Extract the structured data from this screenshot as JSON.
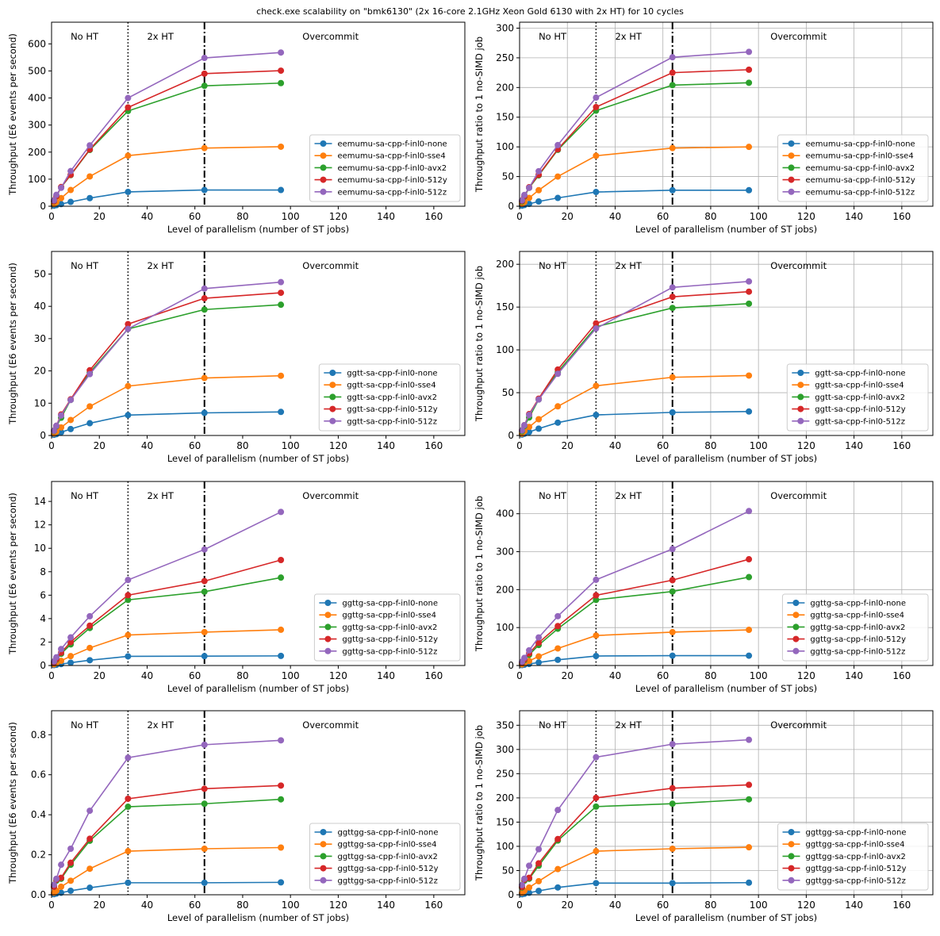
{
  "figure": {
    "title": "check.exe scalability on \"bmk6130\" (2x 16-core 2.1GHz Xeon Gold 6130 with 2x HT) for 10 cycles",
    "region_labels": [
      "No HT",
      "2x HT",
      "Overcommit"
    ],
    "region_label_x": [
      8,
      40,
      105
    ],
    "dotted_line_x": 32,
    "dashdot_line_x": 64,
    "colors": [
      "#1f77b4",
      "#ff7f0e",
      "#2ca02c",
      "#d62728",
      "#9467bd"
    ]
  },
  "chart_data": [
    {
      "type": "line",
      "process": "eemumu",
      "grid": false,
      "xlabel": "Level of parallelism (number of ST jobs)",
      "ylabel": "Throughput (E6 events per second)",
      "xlim": [
        0,
        173
      ],
      "ylim": [
        0,
        680
      ],
      "xticks": [
        0,
        20,
        40,
        60,
        80,
        100,
        120,
        140,
        160
      ],
      "yticks": [
        0,
        100,
        200,
        300,
        400,
        500,
        600
      ],
      "legend": "lower-right",
      "x": [
        1,
        2,
        4,
        8,
        16,
        32,
        64,
        96
      ],
      "series": [
        {
          "name": "eemumu-sa-cpp-f-inl0-none",
          "values": [
            2,
            4,
            8,
            16,
            30,
            53,
            60,
            60
          ]
        },
        {
          "name": "eemumu-sa-cpp-f-inl0-sse4",
          "values": [
            8,
            15,
            30,
            60,
            110,
            187,
            215,
            220
          ]
        },
        {
          "name": "eemumu-sa-cpp-f-inl0-avx2",
          "values": [
            18,
            36,
            70,
            115,
            208,
            352,
            445,
            455
          ]
        },
        {
          "name": "eemumu-sa-cpp-f-inl0-512y",
          "values": [
            19,
            37,
            71,
            116,
            210,
            365,
            490,
            501
          ]
        },
        {
          "name": "eemumu-sa-cpp-f-inl0-512z",
          "values": [
            22,
            42,
            68,
            130,
            225,
            400,
            548,
            568
          ]
        }
      ]
    },
    {
      "type": "line",
      "process": "eemumu",
      "grid": true,
      "xlabel": "Level of parallelism (number of ST jobs)",
      "ylabel": "Throughput ratio to 1 no-SIMD job",
      "xlim": [
        0,
        173
      ],
      "ylim": [
        0,
        310
      ],
      "xticks": [
        0,
        20,
        40,
        60,
        80,
        100,
        120,
        140,
        160
      ],
      "yticks": [
        0,
        50,
        100,
        150,
        200,
        250,
        300
      ],
      "legend": "lower-right",
      "x": [
        1,
        2,
        4,
        8,
        16,
        32,
        64,
        96
      ],
      "series": [
        {
          "name": "eemumu-sa-cpp-f-inl0-none",
          "values": [
            1,
            2,
            4,
            8,
            14,
            24,
            27,
            27
          ]
        },
        {
          "name": "eemumu-sa-cpp-f-inl0-sse4",
          "values": [
            4,
            7,
            14,
            27,
            50,
            85,
            98,
            100
          ]
        },
        {
          "name": "eemumu-sa-cpp-f-inl0-avx2",
          "values": [
            8,
            16,
            31,
            52,
            95,
            161,
            204,
            208
          ]
        },
        {
          "name": "eemumu-sa-cpp-f-inl0-512y",
          "values": [
            9,
            17,
            32,
            53,
            96,
            167,
            225,
            230
          ]
        },
        {
          "name": "eemumu-sa-cpp-f-inl0-512z",
          "values": [
            10,
            19,
            31,
            59,
            103,
            183,
            251,
            260
          ]
        }
      ]
    },
    {
      "type": "line",
      "process": "ggtt",
      "grid": false,
      "xlabel": "Level of parallelism (number of ST jobs)",
      "ylabel": "Throughput (E6 events per second)",
      "xlim": [
        0,
        173
      ],
      "ylim": [
        0,
        57
      ],
      "xticks": [
        0,
        20,
        40,
        60,
        80,
        100,
        120,
        140,
        160
      ],
      "yticks": [
        0,
        10,
        20,
        30,
        40,
        50
      ],
      "legend": "lower-right",
      "x": [
        1,
        2,
        4,
        8,
        16,
        32,
        64,
        96
      ],
      "series": [
        {
          "name": "ggtt-sa-cpp-f-inl0-none",
          "values": [
            0.2,
            0.4,
            1.0,
            2.0,
            3.8,
            6.3,
            7.0,
            7.3
          ]
        },
        {
          "name": "ggtt-sa-cpp-f-inl0-sse4",
          "values": [
            0.6,
            1.2,
            2.5,
            4.8,
            9.0,
            15.3,
            17.8,
            18.5
          ]
        },
        {
          "name": "ggtt-sa-cpp-f-inl0-avx2",
          "values": [
            1.4,
            2.8,
            5.5,
            11.0,
            19.5,
            33.0,
            39.0,
            40.5
          ]
        },
        {
          "name": "ggtt-sa-cpp-f-inl0-512y",
          "values": [
            1.5,
            3.0,
            6.5,
            11.2,
            20.2,
            34.5,
            42.5,
            44.2
          ]
        },
        {
          "name": "ggtt-sa-cpp-f-inl0-512z",
          "values": [
            1.5,
            3.0,
            6.2,
            11.0,
            19.0,
            33.0,
            45.5,
            47.5
          ]
        }
      ]
    },
    {
      "type": "line",
      "process": "ggtt",
      "grid": true,
      "xlabel": "Level of parallelism (number of ST jobs)",
      "ylabel": "Throughput ratio to 1 no-SIMD job",
      "xlim": [
        0,
        173
      ],
      "ylim": [
        0,
        215
      ],
      "xticks": [
        0,
        20,
        40,
        60,
        80,
        100,
        120,
        140,
        160
      ],
      "yticks": [
        0,
        50,
        100,
        150,
        200
      ],
      "legend": "lower-right",
      "x": [
        1,
        2,
        4,
        8,
        16,
        32,
        64,
        96
      ],
      "series": [
        {
          "name": "ggtt-sa-cpp-f-inl0-none",
          "values": [
            1,
            2,
            4,
            8,
            15,
            24,
            27,
            28
          ]
        },
        {
          "name": "ggtt-sa-cpp-f-inl0-sse4",
          "values": [
            2,
            5,
            10,
            19,
            34,
            58,
            68,
            70
          ]
        },
        {
          "name": "ggtt-sa-cpp-f-inl0-avx2",
          "values": [
            5,
            11,
            21,
            42,
            74,
            127,
            149,
            154
          ]
        },
        {
          "name": "ggtt-sa-cpp-f-inl0-512y",
          "values": [
            6,
            12,
            25,
            43,
            77,
            131,
            162,
            168
          ]
        },
        {
          "name": "ggtt-sa-cpp-f-inl0-512z",
          "values": [
            6,
            12,
            24,
            42,
            72,
            125,
            173,
            180
          ]
        }
      ]
    },
    {
      "type": "line",
      "process": "ggttg",
      "grid": false,
      "xlabel": "Level of parallelism (number of ST jobs)",
      "ylabel": "Throughput (E6 events per second)",
      "xlim": [
        0,
        173
      ],
      "ylim": [
        0,
        15.7
      ],
      "xticks": [
        0,
        20,
        40,
        60,
        80,
        100,
        120,
        140,
        160
      ],
      "yticks": [
        0,
        2,
        4,
        6,
        8,
        10,
        12,
        14
      ],
      "legend": "lower-right",
      "x": [
        1,
        2,
        4,
        8,
        16,
        32,
        64,
        96
      ],
      "series": [
        {
          "name": "ggttg-sa-cpp-f-inl0-none",
          "values": [
            0.03,
            0.06,
            0.12,
            0.24,
            0.45,
            0.78,
            0.8,
            0.82
          ]
        },
        {
          "name": "ggttg-sa-cpp-f-inl0-sse4",
          "values": [
            0.1,
            0.2,
            0.4,
            0.8,
            1.5,
            2.6,
            2.85,
            3.05
          ]
        },
        {
          "name": "ggttg-sa-cpp-f-inl0-avx2",
          "values": [
            0.25,
            0.5,
            1.0,
            1.8,
            3.2,
            5.6,
            6.3,
            7.5
          ]
        },
        {
          "name": "ggttg-sa-cpp-f-inl0-512y",
          "values": [
            0.28,
            0.55,
            1.1,
            2.0,
            3.4,
            6.0,
            7.2,
            9.0
          ]
        },
        {
          "name": "ggttg-sa-cpp-f-inl0-512z",
          "values": [
            0.35,
            0.7,
            1.4,
            2.4,
            4.2,
            7.3,
            9.9,
            13.1
          ]
        }
      ]
    },
    {
      "type": "line",
      "process": "ggttg",
      "grid": true,
      "xlabel": "Level of parallelism (number of ST jobs)",
      "ylabel": "Throughput ratio to 1 no-SIMD job",
      "xlim": [
        0,
        173
      ],
      "ylim": [
        0,
        485
      ],
      "xticks": [
        0,
        20,
        40,
        60,
        80,
        100,
        120,
        140,
        160
      ],
      "yticks": [
        0,
        100,
        200,
        300,
        400
      ],
      "legend": "lower-right",
      "x": [
        1,
        2,
        4,
        8,
        16,
        32,
        64,
        96
      ],
      "series": [
        {
          "name": "ggttg-sa-cpp-f-inl0-none",
          "values": [
            1,
            2,
            4,
            8,
            15,
            25,
            26,
            26
          ]
        },
        {
          "name": "ggttg-sa-cpp-f-inl0-sse4",
          "values": [
            3,
            6,
            12,
            24,
            45,
            79,
            88,
            94
          ]
        },
        {
          "name": "ggttg-sa-cpp-f-inl0-avx2",
          "values": [
            7,
            14,
            28,
            54,
            97,
            173,
            195,
            233
          ]
        },
        {
          "name": "ggttg-sa-cpp-f-inl0-512y",
          "values": [
            8,
            16,
            32,
            60,
            104,
            185,
            225,
            280
          ]
        },
        {
          "name": "ggttg-sa-cpp-f-inl0-512z",
          "values": [
            10,
            20,
            40,
            74,
            130,
            226,
            307,
            407
          ]
        }
      ]
    },
    {
      "type": "line",
      "process": "ggttgg",
      "grid": false,
      "xlabel": "Level of parallelism (number of ST jobs)",
      "ylabel": "Throughput (E6 events per second)",
      "xlim": [
        0,
        173
      ],
      "ylim": [
        0,
        0.92
      ],
      "xticks": [
        0,
        20,
        40,
        60,
        80,
        100,
        120,
        140,
        160
      ],
      "yticks": [
        0.0,
        0.2,
        0.4,
        0.6,
        0.8
      ],
      "legend": "lower-right",
      "x": [
        1,
        2,
        4,
        8,
        16,
        32,
        64,
        96
      ],
      "series": [
        {
          "name": "ggttgg-sa-cpp-f-inl0-none",
          "values": [
            0.003,
            0.006,
            0.01,
            0.02,
            0.035,
            0.06,
            0.06,
            0.062
          ]
        },
        {
          "name": "ggttgg-sa-cpp-f-inl0-sse4",
          "values": [
            0.01,
            0.02,
            0.04,
            0.07,
            0.13,
            0.218,
            0.23,
            0.236
          ]
        },
        {
          "name": "ggttgg-sa-cpp-f-inl0-avx2",
          "values": [
            0.04,
            0.07,
            0.08,
            0.15,
            0.27,
            0.44,
            0.455,
            0.477
          ]
        },
        {
          "name": "ggttgg-sa-cpp-f-inl0-512y",
          "values": [
            0.04,
            0.075,
            0.085,
            0.16,
            0.28,
            0.48,
            0.53,
            0.546
          ]
        },
        {
          "name": "ggttgg-sa-cpp-f-inl0-512z",
          "values": [
            0.05,
            0.08,
            0.15,
            0.23,
            0.42,
            0.685,
            0.75,
            0.772
          ]
        }
      ]
    },
    {
      "type": "line",
      "process": "ggttgg",
      "grid": true,
      "xlabel": "Level of parallelism (number of ST jobs)",
      "ylabel": "Throughput ratio to 1 no-SIMD job",
      "xlim": [
        0,
        173
      ],
      "ylim": [
        0,
        380
      ],
      "xticks": [
        0,
        20,
        40,
        60,
        80,
        100,
        120,
        140,
        160
      ],
      "yticks": [
        0,
        50,
        100,
        150,
        200,
        250,
        300,
        350
      ],
      "legend": "lower-right",
      "x": [
        1,
        2,
        4,
        8,
        16,
        32,
        64,
        96
      ],
      "series": [
        {
          "name": "ggttgg-sa-cpp-f-inl0-none",
          "values": [
            1,
            2,
            4,
            8,
            15,
            24,
            24,
            25
          ]
        },
        {
          "name": "ggttgg-sa-cpp-f-inl0-sse4",
          "values": [
            4,
            8,
            15,
            28,
            53,
            90,
            95,
            98
          ]
        },
        {
          "name": "ggttgg-sa-cpp-f-inl0-avx2",
          "values": [
            15,
            29,
            33,
            60,
            112,
            182,
            188,
            197
          ]
        },
        {
          "name": "ggttgg-sa-cpp-f-inl0-512y",
          "values": [
            16,
            31,
            35,
            65,
            115,
            200,
            220,
            227
          ]
        },
        {
          "name": "ggttgg-sa-cpp-f-inl0-512z",
          "values": [
            20,
            33,
            60,
            94,
            175,
            284,
            311,
            320
          ]
        }
      ]
    }
  ]
}
